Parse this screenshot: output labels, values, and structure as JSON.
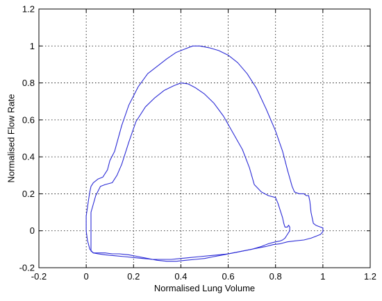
{
  "chart_data": {
    "type": "line",
    "title": "",
    "xlabel": "Normalised Lung Volume",
    "ylabel": "Normalised Flow Rate",
    "xlim": [
      -0.2,
      1.2
    ],
    "ylim": [
      -0.2,
      1.2
    ],
    "xticks": [
      -0.2,
      0,
      0.2,
      0.4,
      0.6,
      0.8,
      1,
      1.2
    ],
    "yticks": [
      -0.2,
      0,
      0.2,
      0.4,
      0.6,
      0.8,
      1,
      1.2
    ],
    "xtick_labels": [
      "-0.2",
      "0",
      "0.2",
      "0.4",
      "0.6",
      "0.8",
      "1",
      "1.2"
    ],
    "ytick_labels": [
      "-0.2",
      "0",
      "0.2",
      "0.4",
      "0.6",
      "0.8",
      "1",
      "1.2"
    ],
    "grid": true,
    "grid_style": "dotted",
    "line_color": "#2b2bd6",
    "series": [
      {
        "x": [
          0.0,
          0.0,
          0.01,
          0.015,
          0.02,
          0.03,
          0.04,
          0.05,
          0.07,
          0.09,
          0.1,
          0.12,
          0.15,
          0.18,
          0.22,
          0.26,
          0.3,
          0.34,
          0.38,
          0.42,
          0.45,
          0.48,
          0.52,
          0.56,
          0.6,
          0.64,
          0.68,
          0.72,
          0.76,
          0.8,
          0.83,
          0.85,
          0.87,
          0.88,
          0.9,
          0.92,
          0.93,
          0.94,
          0.945,
          0.95,
          0.96,
          0.97,
          0.98,
          0.99,
          1.0,
          1.0,
          0.99,
          0.97,
          0.95,
          0.92,
          0.88,
          0.85,
          0.82,
          0.79,
          0.76,
          0.72,
          0.68,
          0.64,
          0.6,
          0.56,
          0.52,
          0.48,
          0.44,
          0.4,
          0.36,
          0.32,
          0.28,
          0.24,
          0.2,
          0.16,
          0.12,
          0.08,
          0.05,
          0.03,
          0.015,
          0.005,
          0.0
        ],
        "y": [
          0.0,
          0.08,
          0.17,
          0.21,
          0.24,
          0.26,
          0.27,
          0.28,
          0.29,
          0.33,
          0.38,
          0.43,
          0.57,
          0.68,
          0.78,
          0.85,
          0.89,
          0.93,
          0.965,
          0.985,
          1.0,
          1.0,
          0.99,
          0.975,
          0.95,
          0.91,
          0.85,
          0.77,
          0.66,
          0.54,
          0.43,
          0.33,
          0.24,
          0.21,
          0.2,
          0.2,
          0.19,
          0.19,
          0.16,
          0.1,
          0.04,
          0.03,
          0.025,
          0.02,
          0.015,
          -0.005,
          -0.02,
          -0.03,
          -0.04,
          -0.05,
          -0.055,
          -0.06,
          -0.07,
          -0.075,
          -0.085,
          -0.095,
          -0.105,
          -0.115,
          -0.125,
          -0.13,
          -0.135,
          -0.14,
          -0.145,
          -0.15,
          -0.155,
          -0.155,
          -0.155,
          -0.15,
          -0.145,
          -0.14,
          -0.135,
          -0.13,
          -0.125,
          -0.12,
          -0.1,
          -0.05,
          0.0
        ]
      },
      {
        "x": [
          0.02,
          0.04,
          0.06,
          0.08,
          0.11,
          0.13,
          0.15,
          0.18,
          0.21,
          0.25,
          0.29,
          0.33,
          0.37,
          0.4,
          0.43,
          0.46,
          0.5,
          0.54,
          0.58,
          0.62,
          0.66,
          0.69,
          0.71,
          0.74,
          0.77,
          0.8,
          0.81,
          0.82,
          0.83,
          0.835,
          0.84,
          0.85,
          0.855,
          0.86,
          0.86,
          0.85,
          0.84,
          0.83,
          0.82,
          0.8,
          0.77,
          0.74,
          0.7,
          0.66,
          0.62,
          0.58,
          0.54,
          0.5,
          0.46,
          0.42,
          0.38,
          0.34,
          0.3,
          0.26,
          0.22,
          0.18,
          0.14,
          0.11,
          0.08,
          0.05,
          0.03,
          0.02,
          0.02,
          0.02,
          0.02
        ],
        "y": [
          0.1,
          0.19,
          0.24,
          0.25,
          0.26,
          0.3,
          0.36,
          0.48,
          0.59,
          0.67,
          0.72,
          0.76,
          0.785,
          0.8,
          0.795,
          0.775,
          0.74,
          0.69,
          0.62,
          0.53,
          0.44,
          0.34,
          0.25,
          0.21,
          0.19,
          0.18,
          0.15,
          0.11,
          0.07,
          0.04,
          0.02,
          0.02,
          0.03,
          0.02,
          0.0,
          -0.02,
          -0.04,
          -0.05,
          -0.055,
          -0.06,
          -0.07,
          -0.085,
          -0.1,
          -0.11,
          -0.12,
          -0.13,
          -0.14,
          -0.15,
          -0.155,
          -0.16,
          -0.165,
          -0.165,
          -0.16,
          -0.15,
          -0.14,
          -0.13,
          -0.125,
          -0.125,
          -0.12,
          -0.12,
          -0.12,
          -0.11,
          -0.05,
          0.0,
          0.1
        ]
      }
    ]
  }
}
